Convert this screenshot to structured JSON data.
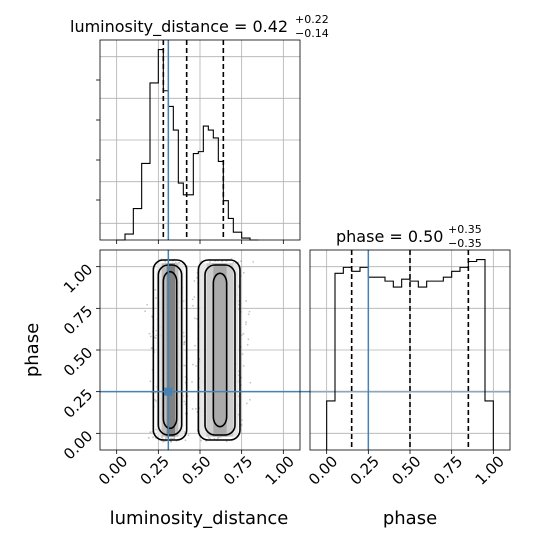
{
  "chart_data": {
    "type": "corner",
    "parameters": [
      "luminosity_distance",
      "phase"
    ],
    "injection": {
      "luminosity_distance": 0.31,
      "phase": 0.25
    },
    "colors": {
      "injection": "#4682b4",
      "hist": "#000000",
      "grid": "#b0b0b0",
      "scatter": "#7f7f7f"
    },
    "grid": true,
    "xlim": [
      -0.1,
      1.1
    ],
    "ylim": [
      -0.1,
      1.1
    ],
    "ticks": [
      0.0,
      0.25,
      0.5,
      0.75,
      1.0
    ],
    "tick_labels": [
      "0.00",
      "0.25",
      "0.50",
      "0.75",
      "1.00"
    ],
    "xlabel_bottom_left": "luminosity_distance",
    "xlabel_bottom_right": "phase",
    "ylabel_left": "phase",
    "panels": [
      {
        "id": "hist-luminosity_distance",
        "title": {
          "param": "luminosity_distance",
          "median": "0.42",
          "plus": "+0.22",
          "minus": "−0.14"
        },
        "quantiles": [
          0.28,
          0.42,
          0.64
        ],
        "bin_edges": [
          0.0,
          0.05,
          0.1,
          0.15,
          0.2,
          0.25,
          0.28,
          0.31,
          0.34,
          0.37,
          0.4,
          0.43,
          0.46,
          0.49,
          0.52,
          0.55,
          0.58,
          0.61,
          0.64,
          0.67,
          0.7,
          0.75,
          0.8,
          0.85
        ],
        "counts": [
          0,
          3,
          16,
          39,
          80,
          97,
          76,
          68,
          56,
          29,
          23,
          23,
          44,
          45,
          58,
          56,
          52,
          40,
          20,
          11,
          4,
          1,
          0
        ]
      },
      {
        "id": "hist-phase",
        "title": {
          "param": "phase",
          "median": "0.50",
          "plus": "+0.35",
          "minus": "−0.35"
        },
        "quantiles": [
          0.15,
          0.5,
          0.85
        ],
        "bin_edges": [
          0.0,
          0.05,
          0.1,
          0.15,
          0.2,
          0.25,
          0.3,
          0.35,
          0.4,
          0.45,
          0.5,
          0.55,
          0.6,
          0.65,
          0.7,
          0.75,
          0.8,
          0.85,
          0.9,
          0.95,
          1.0
        ],
        "counts": [
          0.25,
          0.9,
          0.93,
          0.91,
          0.93,
          0.88,
          0.88,
          0.86,
          0.83,
          0.87,
          0.86,
          0.83,
          0.86,
          0.86,
          0.88,
          0.91,
          0.93,
          0.96,
          0.97,
          0.25
        ]
      }
    ],
    "density_2d": {
      "x": "luminosity_distance",
      "y": "phase",
      "blobs": [
        {
          "x_range": [
            0.25,
            0.39
          ],
          "y_range": [
            0.0,
            1.0
          ]
        },
        {
          "x_range": [
            0.52,
            0.72
          ],
          "y_range": [
            0.0,
            1.0
          ]
        }
      ]
    }
  }
}
